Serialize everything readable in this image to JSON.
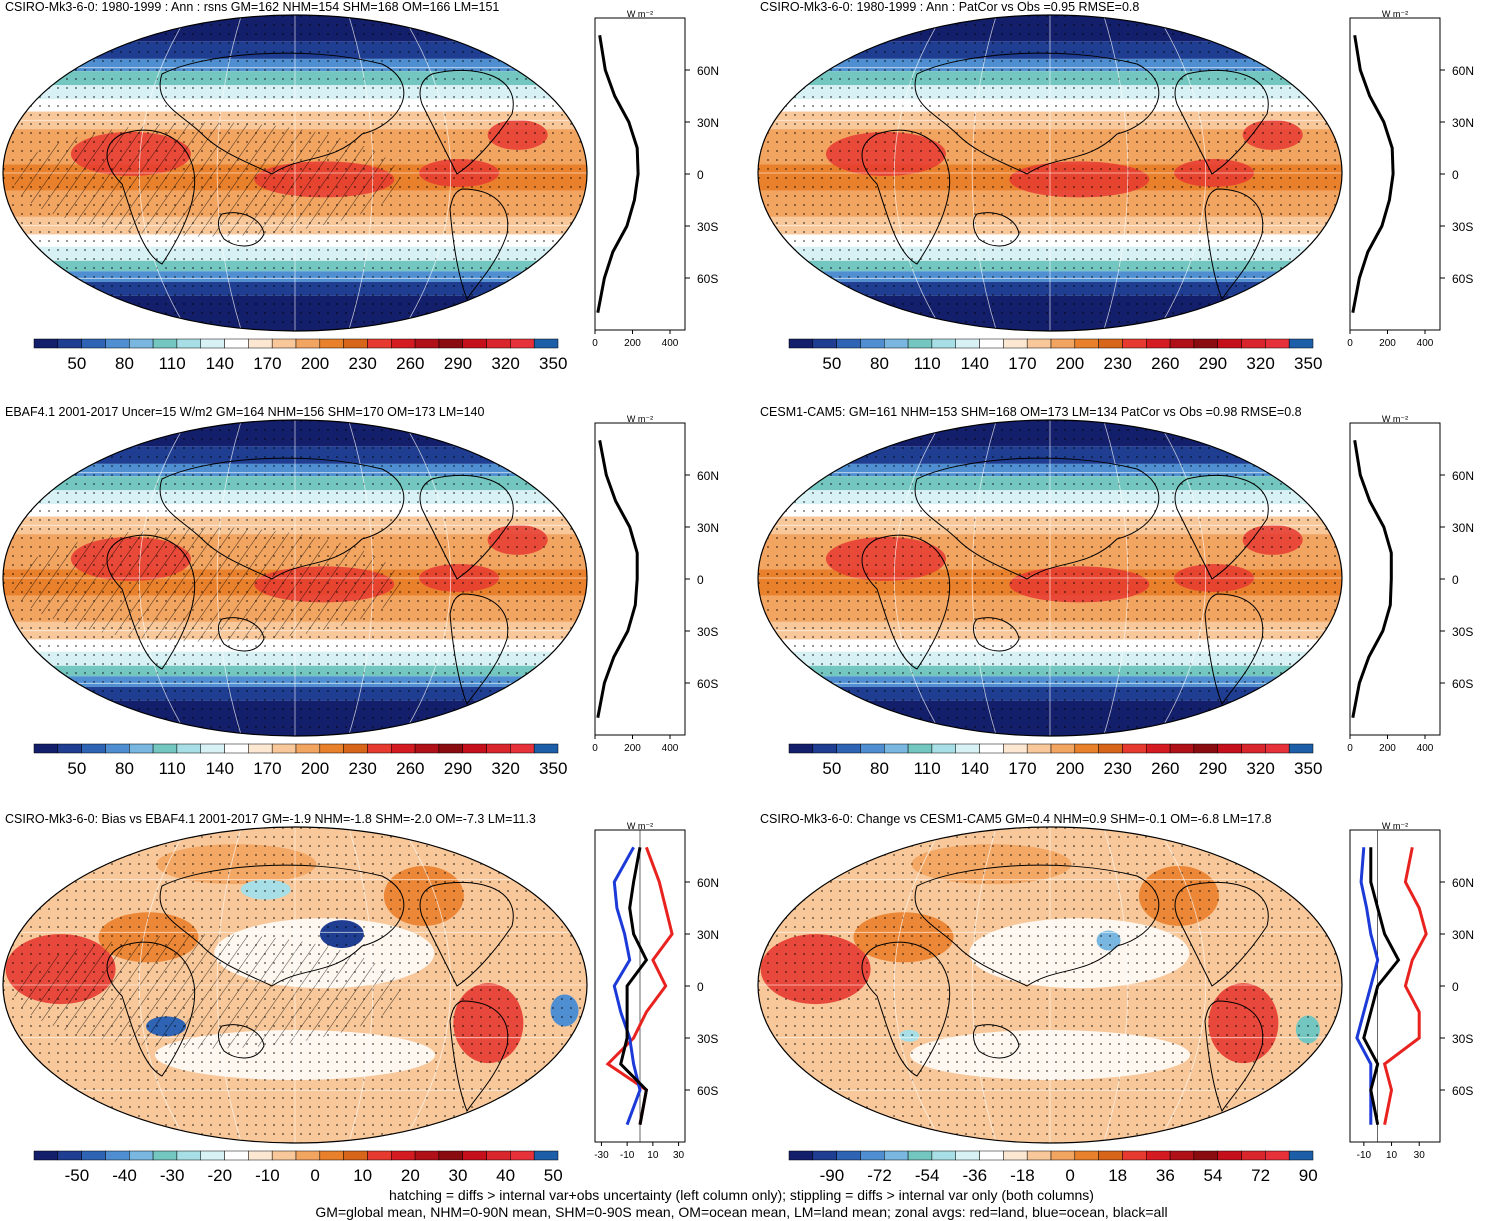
{
  "palette": [
    "#141f6b",
    "#1f3d91",
    "#2f63b3",
    "#4f8fd1",
    "#79b7e0",
    "#74c6c0",
    "#a8dfe6",
    "#d8f1f5",
    "#ffffff",
    "#fbe7d2",
    "#f8c89a",
    "#f2a461",
    "#e9802c",
    "#d8661a",
    "#e63a31",
    "#d41b22",
    "#b01018",
    "#8b0c10",
    "#c5101b",
    "#d9252c",
    "#e6303a",
    "#1c5fa8"
  ],
  "footer": {
    "line1": "hatching = diffs > internal var+obs uncertainty (left column only); stippling = diffs > internal var only (both columns)",
    "line2": "GM=global mean, NHM=0-90N mean, SHM=0-90S mean, OM=ocean mean, LM=land mean; zonal avgs: red=land, blue=ocean, black=all"
  },
  "lat_labels": [
    "60N",
    "30N",
    "0",
    "30S",
    "60S"
  ],
  "panels": [
    {
      "id": "p1",
      "title": "CSIRO-Mk3-6-0: 1980-1999 : Ann : rsns GM=162 NHM=154 SHM=168 OM=166 LM=151",
      "field": "clim",
      "hatch": true,
      "units": "W m⁻²",
      "cbar_labels": [
        "50",
        "80",
        "110",
        "140",
        "170",
        "200",
        "230",
        "260",
        "290",
        "320",
        "350"
      ],
      "profile_xticks": [
        "0",
        "200",
        "400"
      ],
      "profile_xlim": [
        0,
        480
      ]
    },
    {
      "id": "p2",
      "title": "CSIRO-Mk3-6-0: 1980-1999 : Ann : PatCor vs Obs =0.95 RMSE=0.8",
      "field": "clim",
      "hatch": false,
      "units": "W m⁻²",
      "cbar_labels": [
        "50",
        "80",
        "110",
        "140",
        "170",
        "200",
        "230",
        "260",
        "290",
        "320",
        "350"
      ],
      "profile_xticks": [
        "0",
        "200",
        "400"
      ],
      "profile_xlim": [
        0,
        480
      ]
    },
    {
      "id": "p3",
      "title": "EBAF4.1 2001-2017 Uncer=15 W/m2 GM=164 NHM=156 SHM=170 OM=173 LM=140",
      "field": "clim",
      "hatch": true,
      "units": "W m⁻²",
      "cbar_labels": [
        "50",
        "80",
        "110",
        "140",
        "170",
        "200",
        "230",
        "260",
        "290",
        "320",
        "350"
      ],
      "profile_xticks": [
        "0",
        "200",
        "400"
      ],
      "profile_xlim": [
        0,
        480
      ]
    },
    {
      "id": "p4",
      "title": "CESM1-CAM5: GM=161 NHM=153 SHM=168 OM=173 LM=134 PatCor vs Obs =0.98 RMSE=0.8",
      "field": "clim",
      "hatch": false,
      "units": "W m⁻²",
      "cbar_labels": [
        "50",
        "80",
        "110",
        "140",
        "170",
        "200",
        "230",
        "260",
        "290",
        "320",
        "350"
      ],
      "profile_xticks": [
        "0",
        "200",
        "400"
      ],
      "profile_xlim": [
        0,
        480
      ]
    },
    {
      "id": "p5",
      "title": "CSIRO-Mk3-6-0: Bias vs EBAF4.1 2001-2017 GM=-1.9 NHM=-1.8 SHM=-2.0 OM=-7.3 LM=11.3",
      "field": "bias",
      "hatch": true,
      "units": "W m⁻²",
      "cbar_labels": [
        "-50",
        "-40",
        "-30",
        "-20",
        "-10",
        "0",
        "10",
        "20",
        "30",
        "40",
        "50"
      ],
      "profile_xticks": [
        "-30",
        "-10",
        "10",
        "30"
      ],
      "profile_xlim": [
        -35,
        35
      ]
    },
    {
      "id": "p6",
      "title": "CSIRO-Mk3-6-0: Change vs CESM1-CAM5 GM=0.4 NHM=0.9 SHM=-0.1 OM=-6.8 LM=17.8",
      "field": "bias",
      "hatch": false,
      "units": "W m⁻²",
      "cbar_labels": [
        "-90",
        "-72",
        "-54",
        "-36",
        "-18",
        "0",
        "18",
        "36",
        "54",
        "72",
        "90"
      ],
      "profile_xticks": [
        "-10",
        "10",
        "30"
      ],
      "profile_xlim": [
        -20,
        45
      ]
    }
  ],
  "chart_data": [
    {
      "type": "heatmap",
      "title": "CSIRO-Mk3-6-0: 1980-1999 : Ann : rsns GM=162 NHM=154 SHM=168 OM=166 LM=151",
      "levels": [
        50,
        80,
        110,
        140,
        170,
        200,
        230,
        260,
        290,
        320,
        350
      ],
      "zonal_mean": {
        "lat": [
          80,
          60,
          45,
          30,
          15,
          0,
          -15,
          -30,
          -45,
          -60,
          -80
        ],
        "all": [
          25,
          55,
          105,
          180,
          225,
          230,
          210,
          170,
          95,
          50,
          15
        ]
      }
    },
    {
      "type": "heatmap",
      "title": "CSIRO-Mk3-6-0: 1980-1999 : Ann : PatCor vs Obs =0.95 RMSE=0.8",
      "levels": [
        50,
        80,
        110,
        140,
        170,
        200,
        230,
        260,
        290,
        320,
        350
      ],
      "zonal_mean": {
        "lat": [
          80,
          60,
          45,
          30,
          15,
          0,
          -15,
          -30,
          -45,
          -60,
          -80
        ],
        "all": [
          25,
          55,
          105,
          180,
          225,
          230,
          210,
          170,
          95,
          50,
          15
        ]
      }
    },
    {
      "type": "heatmap",
      "title": "EBAF4.1 2001-2017 Uncer=15 W/m2 GM=164 NHM=156 SHM=170 OM=173 LM=140",
      "levels": [
        50,
        80,
        110,
        140,
        170,
        200,
        230,
        260,
        290,
        320,
        350
      ],
      "zonal_mean": {
        "lat": [
          80,
          60,
          45,
          30,
          15,
          0,
          -15,
          -30,
          -45,
          -60,
          -80
        ],
        "all": [
          25,
          60,
          110,
          185,
          225,
          225,
          215,
          175,
          100,
          50,
          15
        ]
      }
    },
    {
      "type": "heatmap",
      "title": "CESM1-CAM5: GM=161 NHM=153 SHM=168 OM=173 LM=134 PatCor vs Obs =0.98 RMSE=0.8",
      "levels": [
        50,
        80,
        110,
        140,
        170,
        200,
        230,
        260,
        290,
        320,
        350
      ],
      "zonal_mean": {
        "lat": [
          80,
          60,
          45,
          30,
          15,
          0,
          -15,
          -30,
          -45,
          -60,
          -80
        ],
        "all": [
          25,
          55,
          105,
          180,
          220,
          220,
          215,
          175,
          100,
          50,
          15
        ]
      }
    },
    {
      "type": "heatmap",
      "title": "CSIRO-Mk3-6-0: Bias vs EBAF4.1 2001-2017 GM=-1.9 NHM=-1.8 SHM=-2.0 OM=-7.3 LM=11.3",
      "levels": [
        -50,
        -40,
        -30,
        -20,
        -10,
        0,
        10,
        20,
        30,
        40,
        50
      ],
      "zonal_mean": {
        "lat": [
          80,
          60,
          45,
          30,
          15,
          0,
          -15,
          -30,
          -45,
          -60,
          -80
        ],
        "land": [
          5,
          15,
          20,
          25,
          10,
          20,
          5,
          -5,
          -25,
          5,
          0
        ],
        "ocean": [
          -5,
          -20,
          -18,
          -12,
          -8,
          -20,
          -15,
          -8,
          -5,
          0,
          -10
        ],
        "all": [
          0,
          -5,
          -8,
          -5,
          5,
          -10,
          -10,
          -10,
          -15,
          5,
          0
        ]
      }
    },
    {
      "type": "heatmap",
      "title": "CSIRO-Mk3-6-0: Change vs CESM1-CAM5 GM=0.4 NHM=0.9 SHM=-0.1 OM=-6.8 LM=17.8",
      "levels": [
        -90,
        -72,
        -54,
        -36,
        -18,
        0,
        18,
        36,
        54,
        72,
        90
      ],
      "zonal_mean": {
        "lat": [
          80,
          60,
          45,
          30,
          15,
          0,
          -15,
          -30,
          -45,
          -60,
          -80
        ],
        "land": [
          25,
          20,
          30,
          35,
          25,
          20,
          30,
          30,
          5,
          10,
          5
        ],
        "ocean": [
          -10,
          -12,
          -8,
          -5,
          0,
          -5,
          -10,
          -15,
          -5,
          -5,
          -5
        ],
        "all": [
          -5,
          -5,
          0,
          5,
          15,
          0,
          -5,
          -10,
          0,
          -5,
          0
        ]
      }
    }
  ]
}
